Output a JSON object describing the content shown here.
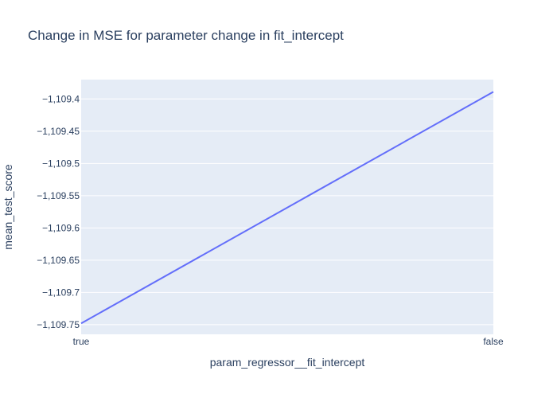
{
  "chart_data": {
    "type": "line",
    "title": "Change in MSE for parameter change in fit_intercept",
    "xlabel": "param_regressor__fit_intercept",
    "ylabel": "mean_test_score",
    "categories": [
      "true",
      "false"
    ],
    "series": [
      {
        "values": [
          -1109.748,
          -1109.389
        ],
        "color": "#636efa"
      }
    ],
    "ylim": [
      -1109.765,
      -1109.37
    ],
    "yticks": [
      -1109.4,
      -1109.45,
      -1109.5,
      -1109.55,
      -1109.6,
      -1109.65,
      -1109.7,
      -1109.75
    ],
    "ytick_labels": [
      "−1,109.4",
      "−1,109.45",
      "−1,109.5",
      "−1,109.55",
      "−1,109.6",
      "−1,109.65",
      "−1,109.7",
      "−1,109.75"
    ],
    "grid": true,
    "plot_background": "#e5ecf6"
  }
}
